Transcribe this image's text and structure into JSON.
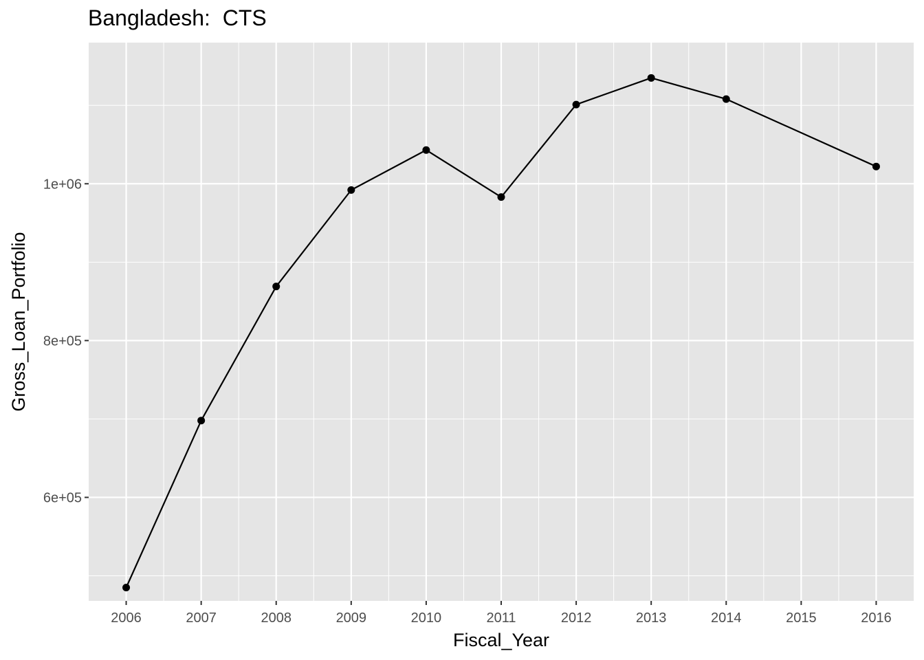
{
  "chart_data": {
    "type": "line",
    "title": "Bangladesh:  CTS",
    "xlabel": "Fiscal_Year",
    "ylabel": "Gross_Loan_Portfolio",
    "x_ticks": [
      "2006",
      "2007",
      "2008",
      "2009",
      "2010",
      "2011",
      "2012",
      "2013",
      "2014",
      "2015",
      "2016"
    ],
    "y_ticks": [
      {
        "value": 600000,
        "label": "6e+05"
      },
      {
        "value": 800000,
        "label": "8e+05"
      },
      {
        "value": 1000000,
        "label": "1e+06"
      }
    ],
    "ylim": [
      468000,
      1180000
    ],
    "xlim": [
      2005.5,
      2016.5
    ],
    "grid": true,
    "series": [
      {
        "x": [
          2006,
          2007,
          2008,
          2009,
          2010,
          2011,
          2012,
          2013,
          2014,
          2016
        ],
        "values": [
          485000,
          698000,
          869000,
          992000,
          1043000,
          983000,
          1101000,
          1135000,
          1108000,
          1022000
        ],
        "color": "#000000"
      }
    ],
    "colors": {
      "panel": "#e5e5e5",
      "grid_major": "#ffffff",
      "text_axis": "#4d4d4d"
    }
  }
}
